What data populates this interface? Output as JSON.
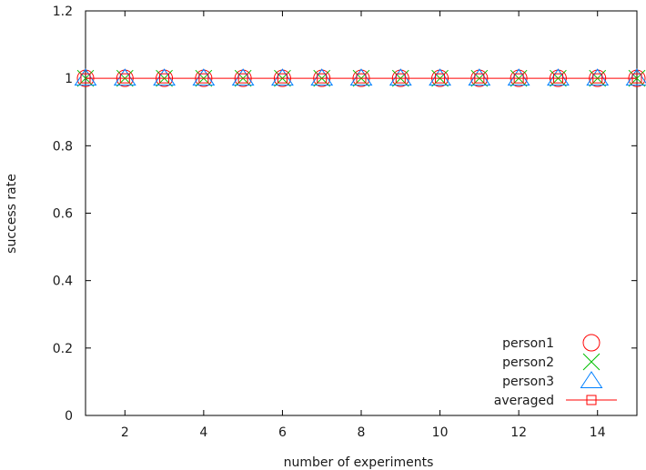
{
  "chart_data": {
    "type": "scatter",
    "title": "",
    "xlabel": "number of experiments",
    "ylabel": "success rate",
    "xlim": [
      1,
      15
    ],
    "ylim": [
      0,
      1.2
    ],
    "x_ticks": [
      2,
      4,
      6,
      8,
      10,
      12,
      14
    ],
    "x_tick_labels": [
      "2",
      "4",
      "6",
      "8",
      "10",
      "12",
      "14"
    ],
    "y_ticks": [
      0,
      0.2,
      0.4,
      0.6,
      0.8,
      1,
      1.2
    ],
    "y_tick_labels": [
      "0",
      "0.2",
      "0.4",
      "0.6",
      "0.8",
      "1",
      "1.2"
    ],
    "grid": false,
    "legend_position": "bottom-right",
    "x": [
      1,
      2,
      3,
      4,
      5,
      6,
      7,
      8,
      9,
      10,
      11,
      12,
      13,
      14,
      15
    ],
    "series": [
      {
        "name": "person1",
        "marker": "circle",
        "line": false,
        "color": "#ff0000",
        "values": [
          1,
          1,
          1,
          1,
          1,
          1,
          1,
          1,
          1,
          1,
          1,
          1,
          1,
          1,
          1
        ]
      },
      {
        "name": "person2",
        "marker": "cross",
        "line": false,
        "color": "#00c000",
        "values": [
          1,
          1,
          1,
          1,
          1,
          1,
          1,
          1,
          1,
          1,
          1,
          1,
          1,
          1,
          1
        ]
      },
      {
        "name": "person3",
        "marker": "triangle",
        "line": false,
        "color": "#0080ff",
        "values": [
          1,
          1,
          1,
          1,
          1,
          1,
          1,
          1,
          1,
          1,
          1,
          1,
          1,
          1,
          1
        ]
      },
      {
        "name": "averaged",
        "marker": "square",
        "line": true,
        "color": "#ff0000",
        "values": [
          1,
          1,
          1,
          1,
          1,
          1,
          1,
          1,
          1,
          1,
          1,
          1,
          1,
          1,
          1
        ]
      }
    ]
  }
}
